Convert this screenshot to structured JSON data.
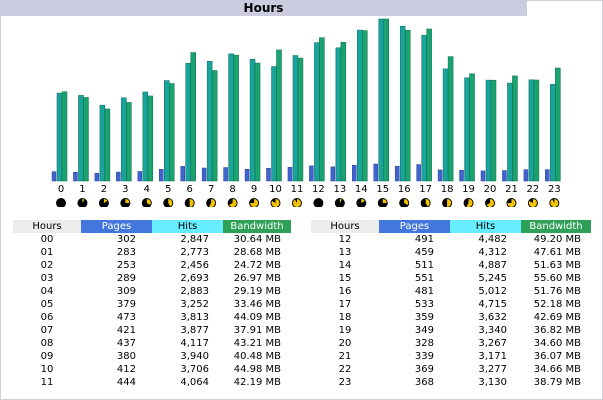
{
  "title": "Hours",
  "colors": {
    "pages": "#4477dd",
    "hits": "#66eeff",
    "bandwidth": "#2ea057",
    "bar_hits": "#1aa39a",
    "bar_bw": "#1aa36e"
  },
  "table_headers": {
    "hours": "Hours",
    "pages": "Pages",
    "hits": "Hits",
    "bandwidth": "Bandwidth"
  },
  "rows_left": [
    {
      "hour": "00",
      "pages": "302",
      "hits": "2,847",
      "bandwidth": "30.64 MB"
    },
    {
      "hour": "01",
      "pages": "283",
      "hits": "2,773",
      "bandwidth": "28.68 MB"
    },
    {
      "hour": "02",
      "pages": "253",
      "hits": "2,456",
      "bandwidth": "24.72 MB"
    },
    {
      "hour": "03",
      "pages": "289",
      "hits": "2,693",
      "bandwidth": "26.97 MB"
    },
    {
      "hour": "04",
      "pages": "309",
      "hits": "2,883",
      "bandwidth": "29.19 MB"
    },
    {
      "hour": "05",
      "pages": "379",
      "hits": "3,252",
      "bandwidth": "33.46 MB"
    },
    {
      "hour": "06",
      "pages": "473",
      "hits": "3,813",
      "bandwidth": "44.09 MB"
    },
    {
      "hour": "07",
      "pages": "421",
      "hits": "3,877",
      "bandwidth": "37.91 MB"
    },
    {
      "hour": "08",
      "pages": "437",
      "hits": "4,117",
      "bandwidth": "43.21 MB"
    },
    {
      "hour": "09",
      "pages": "380",
      "hits": "3,940",
      "bandwidth": "40.48 MB"
    },
    {
      "hour": "10",
      "pages": "412",
      "hits": "3,706",
      "bandwidth": "44.98 MB"
    },
    {
      "hour": "11",
      "pages": "444",
      "hits": "4,064",
      "bandwidth": "42.19 MB"
    }
  ],
  "rows_right": [
    {
      "hour": "12",
      "pages": "491",
      "hits": "4,482",
      "bandwidth": "49.20 MB"
    },
    {
      "hour": "13",
      "pages": "459",
      "hits": "4,312",
      "bandwidth": "47.61 MB"
    },
    {
      "hour": "14",
      "pages": "511",
      "hits": "4,887",
      "bandwidth": "51.63 MB"
    },
    {
      "hour": "15",
      "pages": "551",
      "hits": "5,245",
      "bandwidth": "55.60 MB"
    },
    {
      "hour": "16",
      "pages": "481",
      "hits": "5,012",
      "bandwidth": "51.76 MB"
    },
    {
      "hour": "17",
      "pages": "533",
      "hits": "4,715",
      "bandwidth": "52.18 MB"
    },
    {
      "hour": "18",
      "pages": "359",
      "hits": "3,632",
      "bandwidth": "42.69 MB"
    },
    {
      "hour": "19",
      "pages": "349",
      "hits": "3,340",
      "bandwidth": "36.82 MB"
    },
    {
      "hour": "20",
      "pages": "328",
      "hits": "3,267",
      "bandwidth": "34.60 MB"
    },
    {
      "hour": "21",
      "pages": "339",
      "hits": "3,171",
      "bandwidth": "36.07 MB"
    },
    {
      "hour": "22",
      "pages": "369",
      "hits": "3,277",
      "bandwidth": "34.66 MB"
    },
    {
      "hour": "23",
      "pages": "368",
      "hits": "3,130",
      "bandwidth": "38.79 MB"
    }
  ],
  "chart_data": {
    "type": "bar",
    "categories": [
      "0",
      "1",
      "2",
      "3",
      "4",
      "5",
      "6",
      "7",
      "8",
      "9",
      "10",
      "11",
      "12",
      "13",
      "14",
      "15",
      "16",
      "17",
      "18",
      "19",
      "20",
      "21",
      "22",
      "23"
    ],
    "series": [
      {
        "name": "Pages",
        "values": [
          302,
          283,
          253,
          289,
          309,
          379,
          473,
          421,
          437,
          380,
          412,
          444,
          491,
          459,
          511,
          551,
          481,
          533,
          359,
          349,
          328,
          339,
          369,
          368
        ]
      },
      {
        "name": "Hits",
        "values": [
          2847,
          2773,
          2456,
          2693,
          2883,
          3252,
          3813,
          3877,
          4117,
          3940,
          3706,
          4064,
          4482,
          4312,
          4887,
          5245,
          5012,
          4715,
          3632,
          3340,
          3267,
          3171,
          3277,
          3130
        ]
      },
      {
        "name": "Bandwidth",
        "values": [
          30.64,
          28.68,
          24.72,
          26.97,
          29.19,
          33.46,
          44.09,
          37.91,
          43.21,
          40.48,
          44.98,
          42.19,
          49.2,
          47.61,
          51.63,
          55.6,
          51.76,
          52.18,
          42.69,
          36.82,
          34.6,
          36.07,
          34.66,
          38.79
        ]
      }
    ],
    "grid": false
  }
}
